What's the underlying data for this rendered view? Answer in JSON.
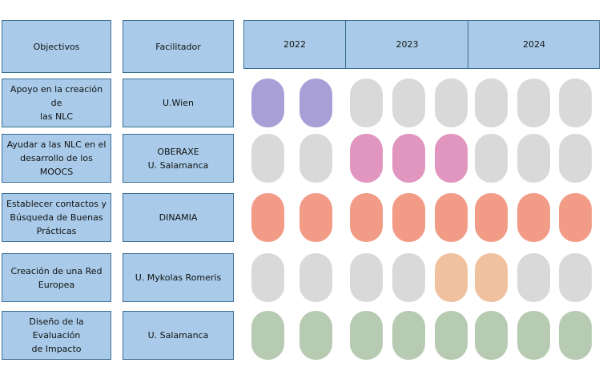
{
  "header": {
    "objectives_label": "Objectivos",
    "facilitator_label": "Facilitador",
    "years": [
      "2022",
      "2023",
      "2024"
    ]
  },
  "rows": [
    {
      "objective": "Apoyo en la creación de\nlas NLC",
      "facilitator": "U.Wien",
      "color": "#a79fd6",
      "active": [
        true,
        true,
        false,
        false,
        false,
        false,
        false,
        false
      ]
    },
    {
      "objective": "Ayudar a las  NLC en el\ndesarrollo de los\nMOOCS",
      "facilitator": "OBERAXE\nU. Salamanca",
      "color": "#e196bf",
      "active": [
        false,
        false,
        true,
        true,
        true,
        false,
        false,
        false
      ]
    },
    {
      "objective": "Establecer contactos y\nBúsqueda de Buenas\nPrácticas",
      "facilitator": "DINAMIA",
      "color": "#f29c87",
      "active": [
        true,
        true,
        true,
        true,
        true,
        true,
        true,
        true
      ]
    },
    {
      "objective": "Creación de una Red\nEuropea",
      "facilitator": "U. Mykolas Romeris",
      "color": "#f0c19f",
      "active": [
        false,
        false,
        false,
        false,
        true,
        true,
        false,
        false
      ]
    },
    {
      "objective": "Diseño de la Evaluación\nde Impacto",
      "facilitator": "U. Salamanca",
      "color": "#b7cbb3",
      "active": [
        true,
        true,
        true,
        true,
        true,
        true,
        true,
        true
      ]
    }
  ],
  "colors": {
    "inactive": "#d9d9d9",
    "header_fill": "#a9cbe9",
    "border": "#3c6e93"
  }
}
